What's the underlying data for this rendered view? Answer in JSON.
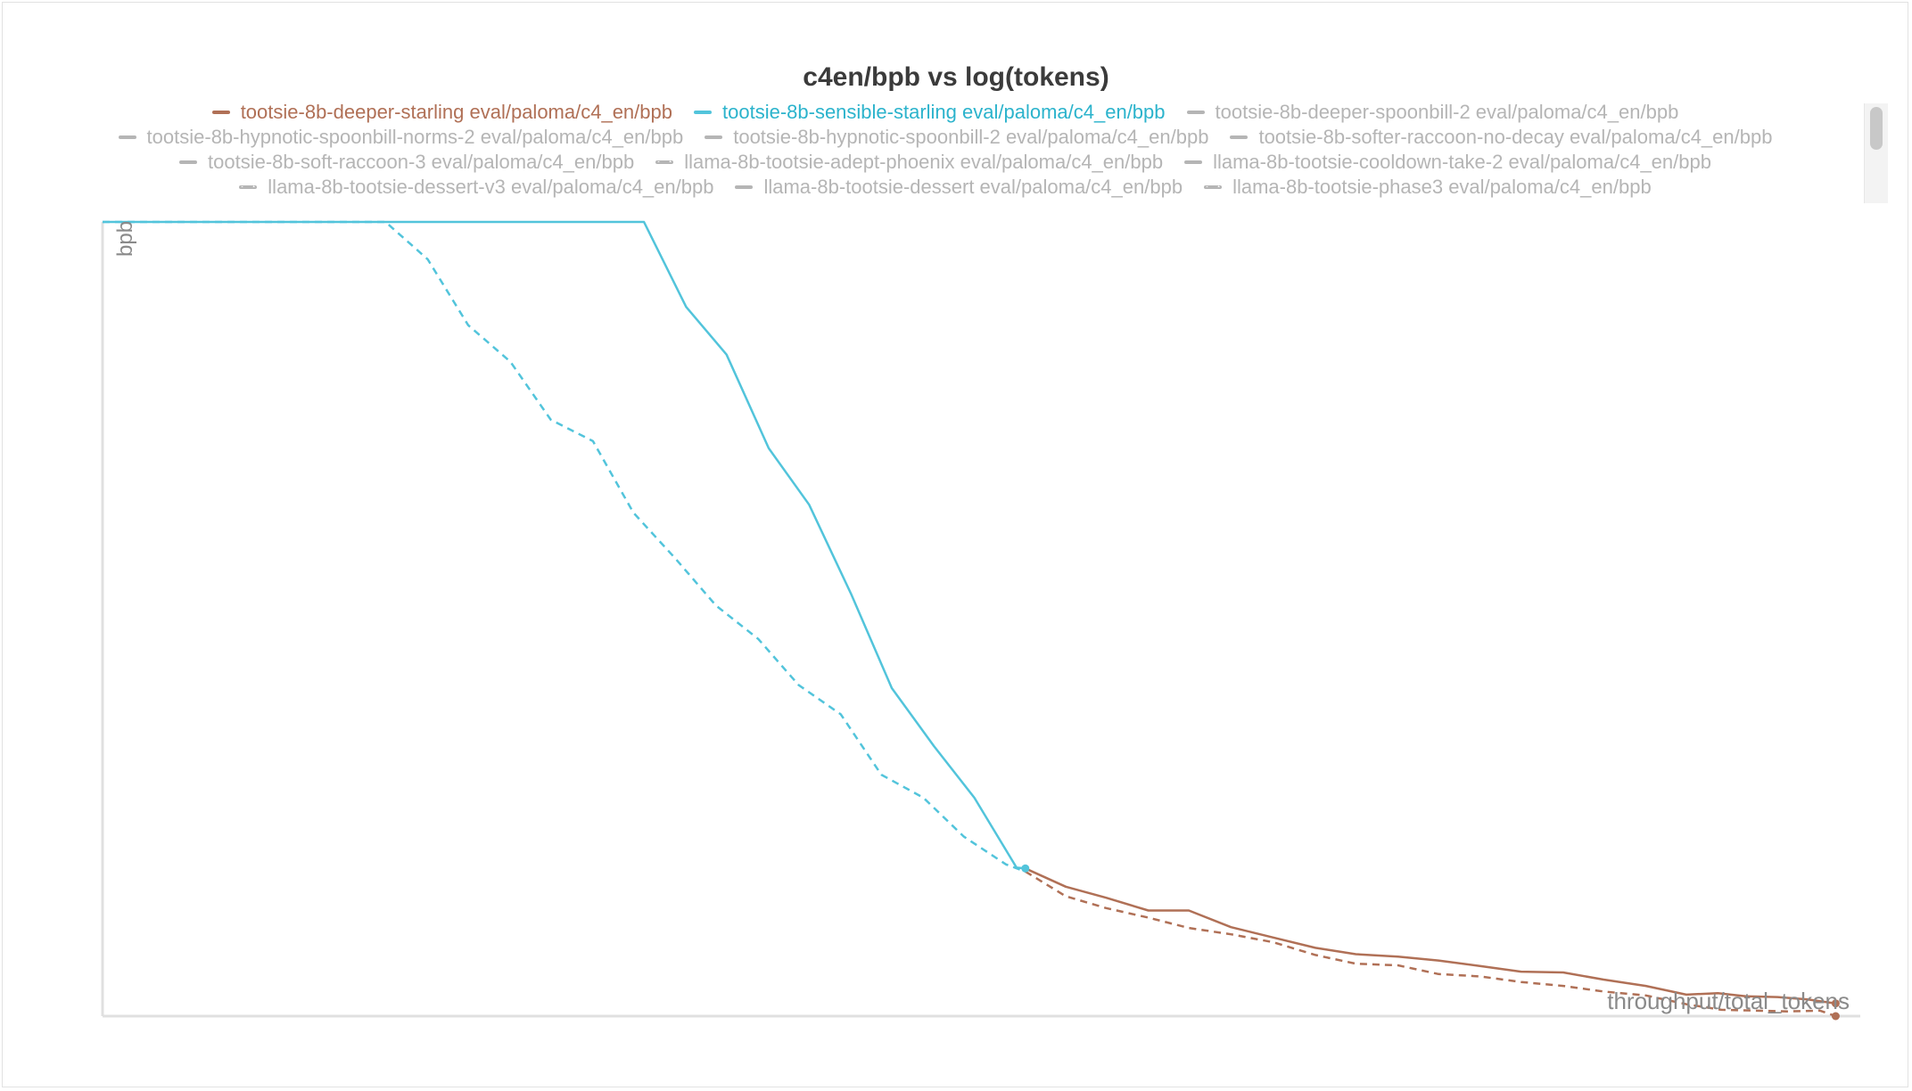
{
  "chart_data": {
    "type": "line",
    "title": "c4en/bpb vs log(tokens)",
    "xlabel": "throughput/total_tokens",
    "ylabel": "bpb",
    "xlim": [
      0,
      100
    ],
    "ylim": [
      0,
      100
    ],
    "grid": false,
    "legend_position": "top",
    "series": [
      {
        "name": "tootsie-8b-deeper-starling eval/paloma/c4_en/bpb",
        "color": "#b07056",
        "dash": false,
        "active": true,
        "points": [
          [
            52.5,
            18.6
          ],
          [
            54.8,
            16.3
          ],
          [
            57.1,
            14.9
          ],
          [
            59.5,
            13.3
          ],
          [
            61.8,
            13.3
          ],
          [
            64.2,
            11.2
          ],
          [
            66.6,
            9.9
          ],
          [
            69.0,
            8.6
          ],
          [
            71.3,
            7.8
          ],
          [
            73.7,
            7.5
          ],
          [
            76.0,
            7.0
          ],
          [
            78.4,
            6.3
          ],
          [
            80.7,
            5.6
          ],
          [
            83.1,
            5.5
          ],
          [
            85.4,
            4.6
          ],
          [
            87.8,
            3.8
          ],
          [
            90.1,
            2.7
          ],
          [
            91.9,
            2.9
          ],
          [
            93.5,
            2.5
          ],
          [
            95.3,
            2.4
          ],
          [
            97.0,
            2.1
          ],
          [
            98.6,
            1.6
          ]
        ]
      },
      {
        "name": "tootsie-8b-sensible-starling eval/paloma/c4_en/bpb",
        "color": "#52c4db",
        "dash": false,
        "active": true,
        "points": [
          [
            0,
            100
          ],
          [
            30.8,
            100
          ],
          [
            33.2,
            89.3
          ],
          [
            35.5,
            83.3
          ],
          [
            37.9,
            71.5
          ],
          [
            40.2,
            64.4
          ],
          [
            42.6,
            53.1
          ],
          [
            44.9,
            41.3
          ],
          [
            47.3,
            34.0
          ],
          [
            49.6,
            27.5
          ],
          [
            52.0,
            18.7
          ],
          [
            52.5,
            18.6
          ]
        ]
      },
      {
        "name": "tootsie-8b-deeper-spoonbill-2 eval/paloma/c4_en/bpb",
        "color": "#b5b5b5",
        "dash": false,
        "active": false,
        "points": []
      },
      {
        "name": "tootsie-8b-hypnotic-spoonbill-norms-2 eval/paloma/c4_en/bpb",
        "color": "#b5b5b5",
        "dash": false,
        "active": false,
        "points": []
      },
      {
        "name": "tootsie-8b-hypnotic-spoonbill-2 eval/paloma/c4_en/bpb",
        "color": "#b5b5b5",
        "dash": false,
        "active": false,
        "points": []
      },
      {
        "name": "tootsie-8b-softer-raccoon-no-decay eval/paloma/c4_en/bpb",
        "color": "#b5b5b5",
        "dash": false,
        "active": false,
        "points": []
      },
      {
        "name": "tootsie-8b-soft-raccoon-3 eval/paloma/c4_en/bpb",
        "color": "#b5b5b5",
        "dash": false,
        "active": false,
        "points": []
      },
      {
        "name": "llama-8b-tootsie-adept-phoenix eval/paloma/c4_en/bpb",
        "color": "#b5b5b5",
        "dash": true,
        "active": false,
        "points": []
      },
      {
        "name": "llama-8b-tootsie-cooldown-take-2 eval/paloma/c4_en/bpb",
        "color": "#b5b5b5",
        "dash": false,
        "active": false,
        "points": []
      },
      {
        "name": "llama-8b-tootsie-dessert-v3 eval/paloma/c4_en/bpb",
        "color": "#b5b5b5",
        "dash": true,
        "active": false,
        "points": []
      },
      {
        "name": "llama-8b-tootsie-dessert eval/paloma/c4_en/bpb",
        "color": "#b5b5b5",
        "dash": false,
        "active": false,
        "points": []
      },
      {
        "name": "llama-8b-tootsie-phase3 eval/paloma/c4_en/bpb",
        "color": "#b5b5b5",
        "dash": true,
        "active": false,
        "points": []
      }
    ],
    "dashed_runs": [
      {
        "color": "#52c4db",
        "points": [
          [
            0,
            100
          ],
          [
            16.1,
            100
          ],
          [
            18.5,
            95.3
          ],
          [
            20.8,
            87.0
          ],
          [
            23.2,
            82.4
          ],
          [
            25.5,
            75.1
          ],
          [
            27.9,
            72.4
          ],
          [
            30.2,
            63.4
          ],
          [
            32.6,
            57.6
          ],
          [
            34.9,
            51.7
          ],
          [
            37.3,
            47.5
          ],
          [
            39.6,
            41.7
          ],
          [
            42.0,
            38.0
          ],
          [
            44.3,
            30.4
          ],
          [
            46.7,
            27.5
          ],
          [
            49.0,
            22.6
          ],
          [
            51.4,
            19.1
          ],
          [
            52.5,
            18.2
          ]
        ]
      },
      {
        "color": "#b07056",
        "points": [
          [
            52.5,
            18.2
          ],
          [
            54.8,
            15.1
          ],
          [
            57.1,
            13.6
          ],
          [
            59.5,
            12.4
          ],
          [
            61.8,
            11.1
          ],
          [
            64.2,
            10.3
          ],
          [
            66.6,
            9.3
          ],
          [
            69.0,
            7.7
          ],
          [
            71.3,
            6.6
          ],
          [
            73.7,
            6.4
          ],
          [
            76.0,
            5.3
          ],
          [
            78.4,
            5.0
          ],
          [
            80.7,
            4.3
          ],
          [
            83.1,
            3.8
          ],
          [
            85.4,
            3.1
          ],
          [
            87.8,
            2.6
          ],
          [
            90.1,
            1.5
          ],
          [
            92.1,
            0.8
          ],
          [
            94.0,
            0.7
          ],
          [
            95.9,
            0.6
          ],
          [
            97.7,
            0.7
          ],
          [
            98.6,
            0.0
          ]
        ]
      }
    ]
  },
  "legend_rows": [
    [
      0,
      1,
      2
    ],
    [
      3,
      4,
      5
    ],
    [
      6,
      7,
      8
    ],
    [
      9,
      10,
      11
    ]
  ]
}
